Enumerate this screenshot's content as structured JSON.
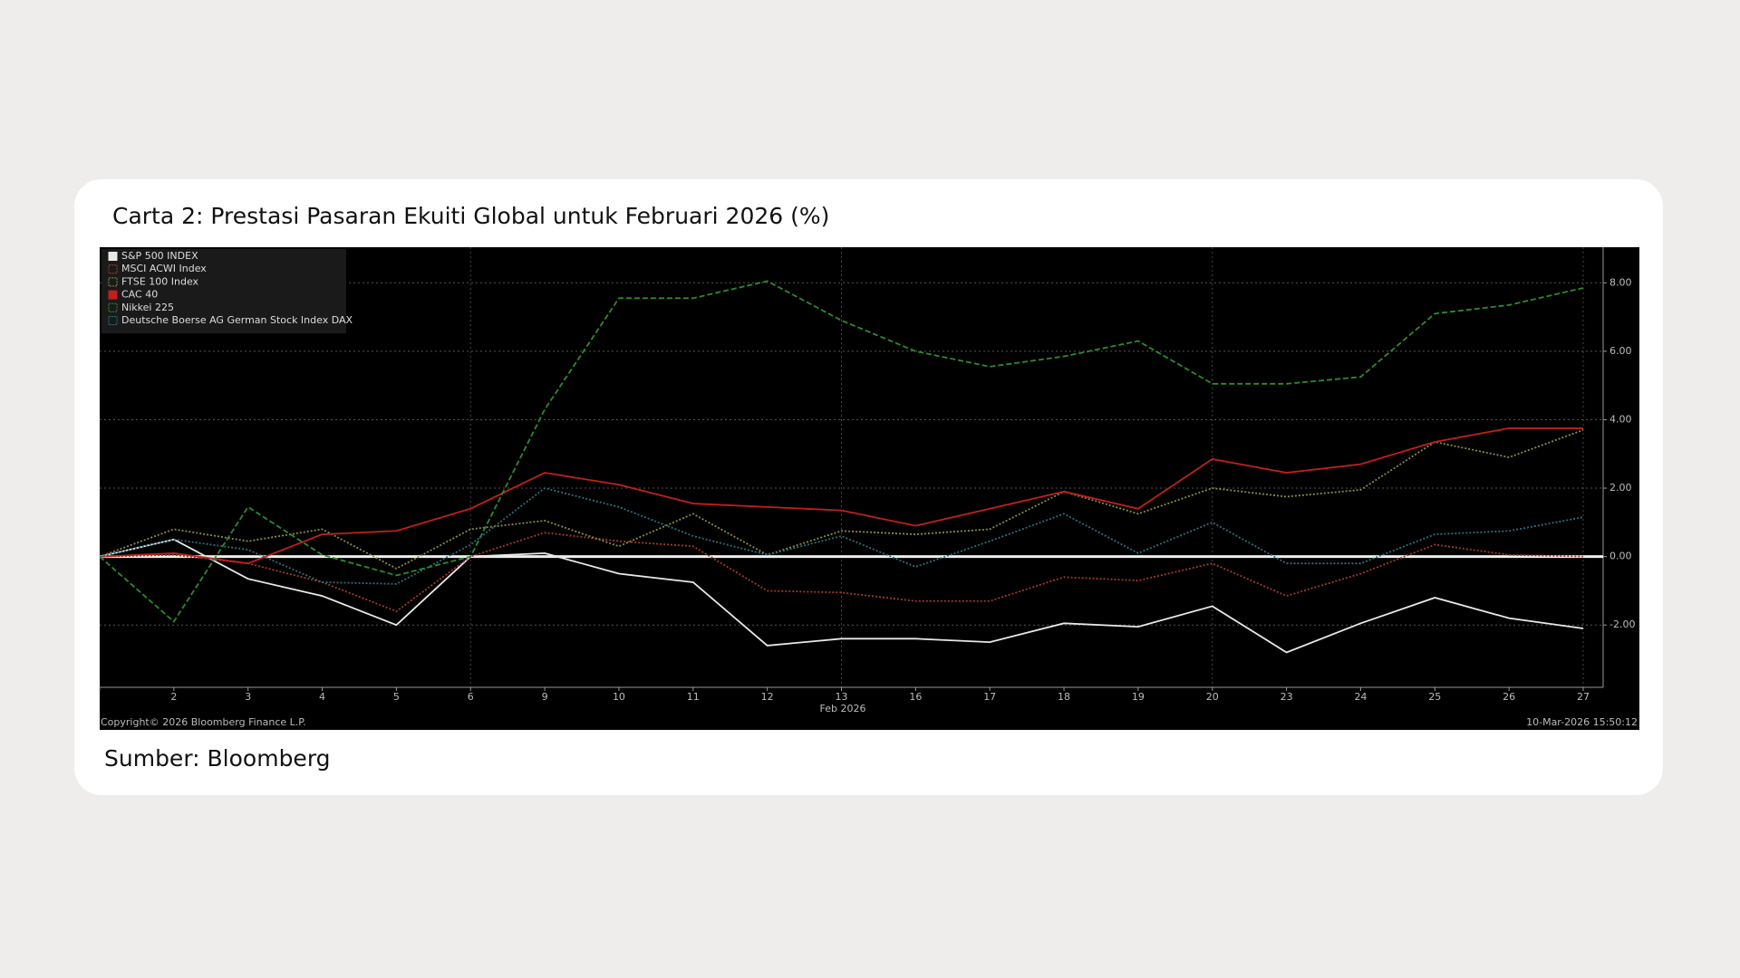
{
  "chart_data": {
    "type": "line",
    "title": "Carta 2: Prestasi Pasaran Ekuiti Global untuk Februari 2026 (%)",
    "x_label": "Feb 2026",
    "categories": [
      null,
      "2",
      "3",
      "4",
      "5",
      "6",
      "9",
      "10",
      "11",
      "12",
      "13",
      "16",
      "17",
      "18",
      "19",
      "20",
      "23",
      "24",
      "25",
      "26",
      "27"
    ],
    "series": [
      {
        "name": "S&P 500 INDEX",
        "color": "#e8e8e8",
        "dash": "solid",
        "values": [
          0,
          0.5,
          -0.65,
          -1.15,
          -2.0,
          0,
          0.1,
          -0.5,
          -0.75,
          -2.6,
          -2.4,
          -2.4,
          -2.5,
          -1.95,
          -2.05,
          -1.45,
          -2.8,
          -1.95,
          -1.2,
          -1.8,
          -2.1
        ]
      },
      {
        "name": "MSCI ACWI Index",
        "color": "#a0392c",
        "dash": "dotted",
        "values": [
          0,
          0.05,
          -0.2,
          -0.75,
          -1.6,
          0,
          0.7,
          0.45,
          0.3,
          -1.0,
          -1.05,
          -1.3,
          -1.3,
          -0.6,
          -0.7,
          -0.2,
          -1.15,
          -0.5,
          0.35,
          0.05,
          0
        ]
      },
      {
        "name": "FTSE 100 Index",
        "color": "#8a8a4a",
        "dash": "dotted",
        "values": [
          0,
          0.8,
          0.45,
          0.8,
          -0.35,
          0.8,
          1.05,
          0.3,
          1.25,
          0.05,
          0.75,
          0.65,
          0.8,
          1.9,
          1.25,
          2.0,
          1.75,
          1.95,
          3.35,
          2.9,
          3.7
        ]
      },
      {
        "name": "CAC 40",
        "color": "#c0201c",
        "dash": "solid",
        "values": [
          0,
          0.1,
          -0.2,
          0.65,
          0.75,
          1.4,
          2.45,
          2.1,
          1.55,
          1.45,
          1.35,
          0.9,
          1.4,
          1.9,
          1.4,
          2.85,
          2.45,
          2.7,
          3.35,
          3.75,
          3.75
        ]
      },
      {
        "name": "Nikkei 225",
        "color": "#2f8a2f",
        "dash": "dashed",
        "values": [
          0,
          -1.9,
          1.45,
          0.05,
          -0.55,
          0,
          4.3,
          7.55,
          7.55,
          8.05,
          6.9,
          6.0,
          5.55,
          5.85,
          6.3,
          5.05,
          5.05,
          5.25,
          7.1,
          7.35,
          7.85
        ]
      },
      {
        "name": "Deutsche Boerse AG German Stock Index DAX",
        "color": "#2c6f7a",
        "dash": "dotted",
        "values": [
          0,
          0.5,
          0.2,
          -0.75,
          -0.8,
          0.35,
          2.0,
          1.45,
          0.6,
          0.05,
          0.6,
          -0.3,
          0.45,
          1.25,
          0.1,
          1.0,
          -0.2,
          -0.2,
          0.65,
          0.75,
          1.15
        ]
      }
    ],
    "ylim": [
      -3.82,
      9.04
    ],
    "yticks": [
      {
        "value": -2,
        "label": "-2.00"
      },
      {
        "value": 0,
        "label": "0.00"
      },
      {
        "value": 2,
        "label": "2.00"
      },
      {
        "value": 4,
        "label": "4.00"
      },
      {
        "value": 6,
        "label": "6.00"
      },
      {
        "value": 8,
        "label": "8.00"
      }
    ],
    "grid": true,
    "legend": "top-left",
    "copyright": "Copyright© 2026 Bloomberg Finance L.P.",
    "timestamp": "10-Mar-2026 15:50:12"
  },
  "source": "Sumber: Bloomberg"
}
